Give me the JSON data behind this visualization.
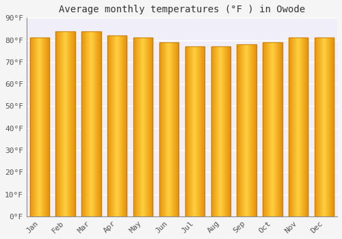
{
  "months": [
    "Jan",
    "Feb",
    "Mar",
    "Apr",
    "May",
    "Jun",
    "Jul",
    "Aug",
    "Sep",
    "Oct",
    "Nov",
    "Dec"
  ],
  "values": [
    81,
    84,
    84,
    82,
    81,
    79,
    77,
    77,
    78,
    79,
    81,
    81
  ],
  "bar_color_left": "#E8930A",
  "bar_color_center": "#FFD040",
  "bar_color_right": "#E8930A",
  "bar_edge_color": "#C07800",
  "title": "Average monthly temperatures (°F ) in Owode",
  "ylim": [
    0,
    90
  ],
  "yticks": [
    0,
    10,
    20,
    30,
    40,
    50,
    60,
    70,
    80,
    90
  ],
  "ytick_labels": [
    "0°F",
    "10°F",
    "20°F",
    "30°F",
    "40°F",
    "50°F",
    "60°F",
    "70°F",
    "80°F",
    "90°F"
  ],
  "background_color": "#F5F5F5",
  "plot_bg_color": "#F0EEF8",
  "grid_color": "#FFFFFF",
  "title_fontsize": 10,
  "tick_fontsize": 8,
  "font_family": "monospace",
  "bar_width": 0.75,
  "gradient_steps": 40
}
